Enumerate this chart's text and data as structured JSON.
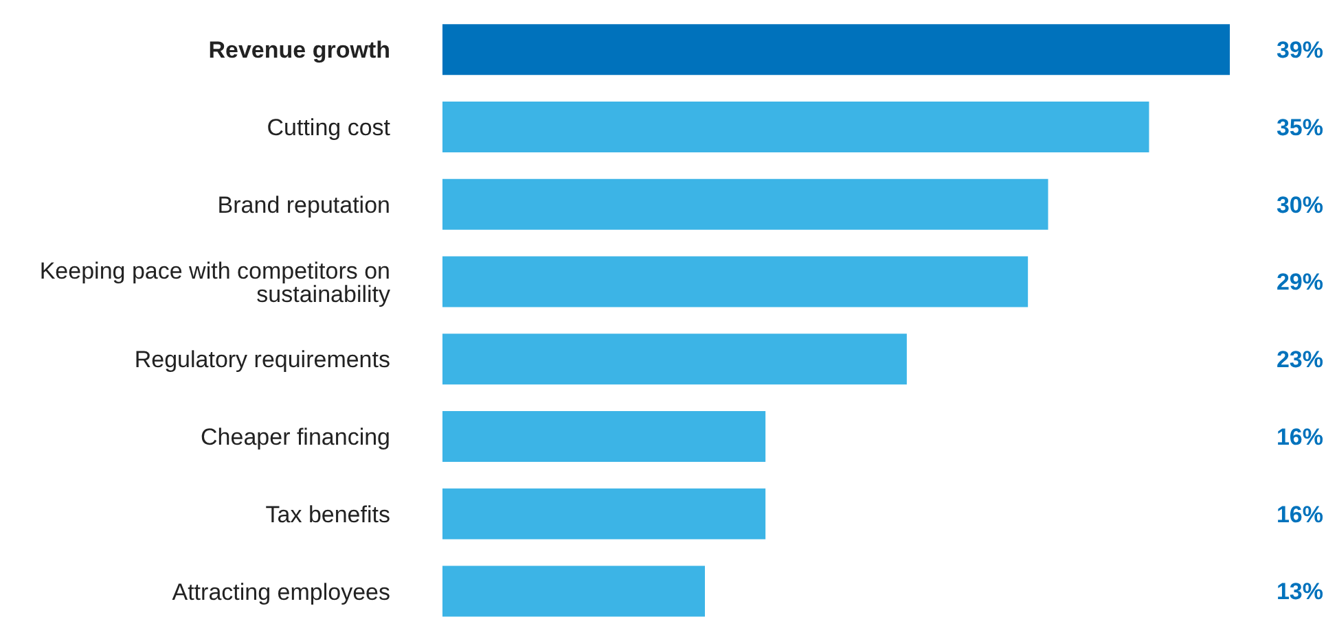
{
  "chart_data": {
    "type": "bar",
    "orientation": "horizontal",
    "categories": [
      "Revenue growth",
      "Cutting cost",
      "Brand reputation",
      "Keeping pace with competitors on sustainability",
      "Regulatory requirements",
      "Cheaper financing",
      "Tax benefits",
      "Attracting employees"
    ],
    "values": [
      39,
      35,
      30,
      29,
      23,
      16,
      16,
      13
    ],
    "colors": [
      "#0072bc",
      "#3cb4e6",
      "#3cb4e6",
      "#3cb4e6",
      "#3cb4e6",
      "#3cb4e6",
      "#3cb4e6",
      "#3cb4e6"
    ],
    "value_labels": [
      "39%",
      "35%",
      "30%",
      "29%",
      "23%",
      "16%",
      "16%",
      "13%"
    ],
    "grid": false,
    "legend": false
  }
}
